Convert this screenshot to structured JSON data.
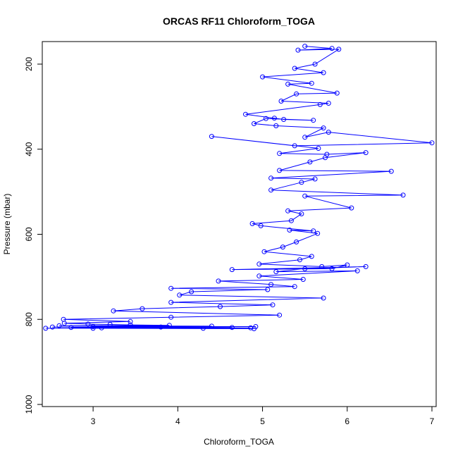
{
  "chart_data": {
    "type": "line",
    "title": "ORCAS RF11 Chloroform_TOGA",
    "xlabel": "Chloroform_TOGA",
    "ylabel": "Pressure (mbar)",
    "xlim": [
      2.4,
      7.05
    ],
    "ylim": [
      1005,
      147
    ],
    "y_reversed": true,
    "x_ticks": [
      3,
      4,
      5,
      6,
      7
    ],
    "y_ticks": [
      200,
      400,
      600,
      800,
      1000
    ],
    "grid": false,
    "legend": "none",
    "marker": "open-circle",
    "color": "#0000ff",
    "series": [
      {
        "x": [
          5.5,
          5.82,
          5.42,
          5.9,
          5.62,
          5.38,
          5.72,
          5.0,
          5.58,
          5.3,
          5.88,
          5.4,
          5.22,
          5.78,
          5.68,
          4.8,
          5.14,
          5.25,
          5.6,
          5.04,
          4.9,
          5.16,
          5.72,
          5.5,
          5.78,
          7.0,
          5.38,
          4.4,
          5.66,
          5.2,
          5.76,
          6.22,
          5.74,
          5.56,
          5.2,
          6.52,
          5.1,
          5.62,
          5.46,
          5.1,
          6.66,
          5.5,
          6.05,
          5.3,
          5.46,
          5.34,
          4.88,
          4.98,
          5.6,
          5.32,
          5.65,
          5.4,
          5.24,
          5.02,
          5.58,
          5.44,
          4.96,
          5.7,
          6.0,
          5.82,
          4.64,
          6.22,
          5.5,
          5.16,
          6.12,
          4.96,
          5.48,
          4.48,
          5.1,
          5.38,
          3.92,
          5.06,
          4.16,
          4.02,
          5.72,
          3.92,
          5.12,
          4.5,
          3.58,
          3.24,
          5.2,
          3.92,
          2.65,
          3.44,
          2.66,
          2.94,
          3.2,
          3.44,
          3.9,
          2.6,
          4.4,
          3.0,
          4.92,
          2.52,
          3.8,
          2.74,
          4.64,
          3.1,
          4.86,
          2.44,
          4.3,
          3.0,
          4.9
        ],
        "y": [
          158,
          163,
          167,
          165,
          200,
          210,
          220,
          230,
          245,
          247,
          268,
          270,
          287,
          292,
          295,
          318,
          327,
          330,
          332,
          328,
          340,
          345,
          350,
          372,
          360,
          385,
          392,
          370,
          398,
          410,
          412,
          408,
          420,
          430,
          450,
          452,
          468,
          470,
          478,
          496,
          508,
          510,
          538,
          545,
          552,
          568,
          575,
          580,
          592,
          590,
          598,
          618,
          630,
          641,
          652,
          660,
          670,
          676,
          672,
          681,
          683,
          676,
          681,
          688,
          686,
          698,
          706,
          710,
          718,
          723,
          727,
          730,
          735,
          743,
          750,
          760,
          766,
          770,
          775,
          780,
          790,
          795,
          800,
          805,
          809,
          811,
          812,
          813,
          814,
          815,
          816,
          817,
          817,
          818,
          818,
          819,
          819,
          820,
          820,
          821,
          821,
          821,
          822
        ]
      }
    ]
  }
}
